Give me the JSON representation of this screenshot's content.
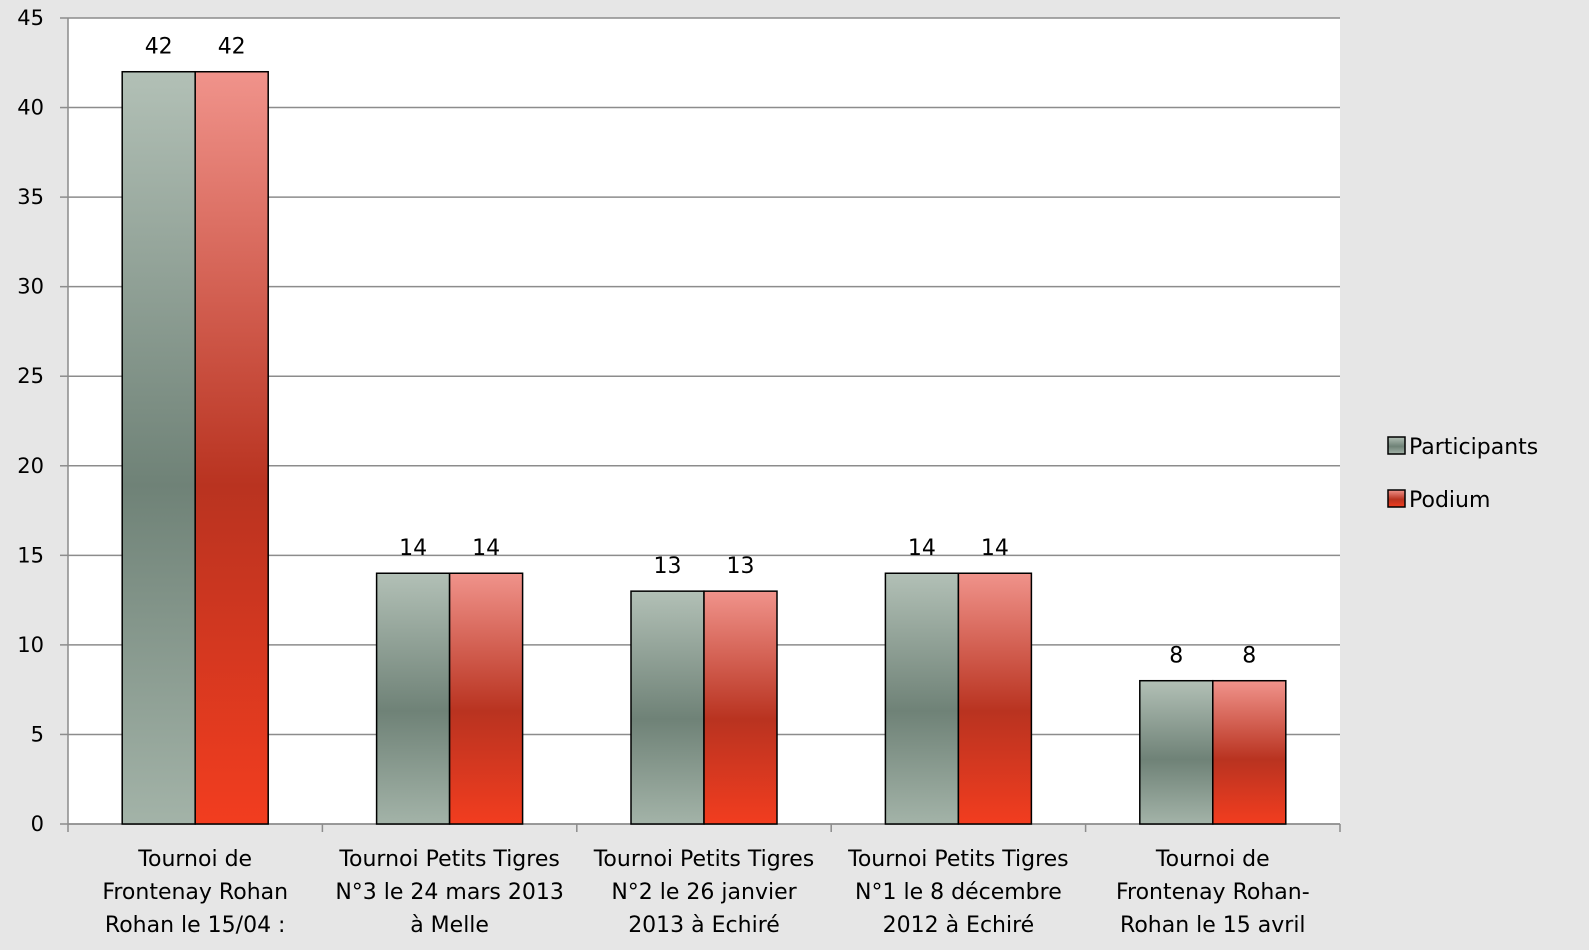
{
  "chart_data": {
    "type": "bar",
    "categories": [
      [
        "Tournoi de",
        "Frontenay Rohan",
        "Rohan le 15/04 :"
      ],
      [
        "Tournoi Petits Tigres",
        "N°3 le 24 mars 2013",
        "à Melle"
      ],
      [
        "Tournoi Petits Tigres",
        "N°2 le 26 janvier",
        "2013 à Echiré"
      ],
      [
        "Tournoi Petits Tigres",
        "N°1 le 8 décembre",
        "2012 à Echiré"
      ],
      [
        "Tournoi de",
        "Frontenay Rohan-",
        "Rohan le 15 avril"
      ]
    ],
    "series": [
      {
        "name": "Participants",
        "values": [
          42,
          14,
          13,
          14,
          8
        ],
        "color_top": "#b2c0b6",
        "color_mid": "#6f8277",
        "color_bottom": "#a3b3a8"
      },
      {
        "name": "Podium",
        "values": [
          42,
          14,
          13,
          14,
          8
        ],
        "color_top": "#f0938b",
        "color_mid": "#b93320",
        "color_bottom": "#f23d1f"
      }
    ],
    "ylim": [
      0,
      45
    ],
    "yticks": [
      0,
      5,
      10,
      15,
      20,
      25,
      30,
      35,
      40,
      45
    ],
    "grid": true,
    "legend": "right",
    "data_labels": true,
    "title": "",
    "xlabel": "",
    "ylabel": ""
  }
}
